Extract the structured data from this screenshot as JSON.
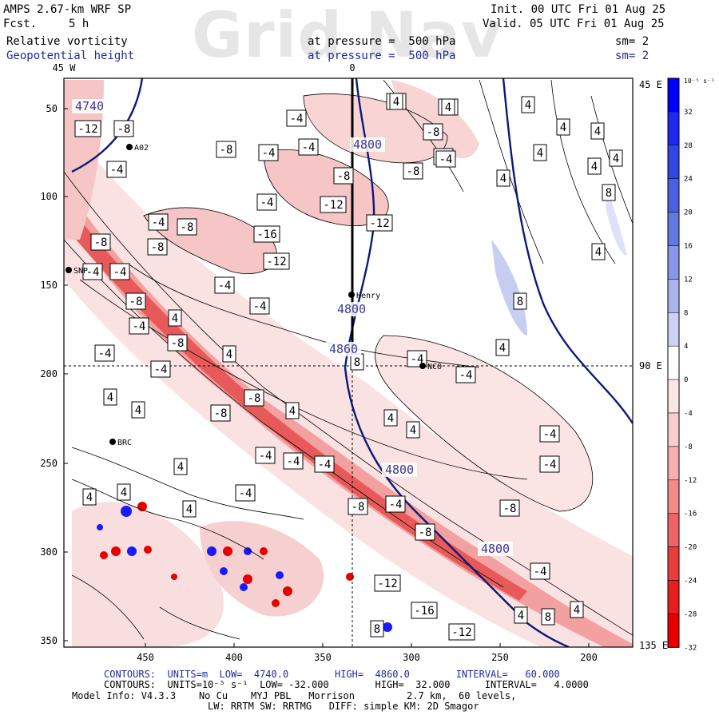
{
  "header": {
    "model": "AMPS 2.67-km WRF SP",
    "forecast_label": "Fcst.",
    "forecast_value": "5 h",
    "init": "Init. 00 UTC Fri 01 Aug 25",
    "valid": "Valid. 05 UTC Fri 01 Aug 25",
    "field1_name": "Relative vorticity",
    "field1_level": "at pressure =  500 hPa",
    "field1_sm": "sm= 2",
    "field2_name": "Geopotential height",
    "field2_level": "at pressure =  500 hPa",
    "field2_sm": "sm= 2",
    "watermark": "Grid Nav"
  },
  "map": {
    "top_labels": [
      "45 W",
      "0"
    ],
    "right_labels": [
      "45 E",
      "90 E",
      "135 E"
    ],
    "y_ticks": [
      "50",
      "100",
      "150",
      "200",
      "250",
      "300",
      "350"
    ],
    "x_ticks": [
      "450",
      "400",
      "350",
      "300",
      "250",
      "200"
    ],
    "stations": [
      "A02",
      "SNP",
      "Henry",
      "NCO",
      "BRC"
    ],
    "height_labels": [
      "4740",
      "4800",
      "4800",
      "4860",
      "4800",
      "4800"
    ],
    "vort_labels": [
      "-4",
      "-4",
      "-4",
      "-8",
      "-4",
      "-4",
      "-8",
      "-12",
      "-8",
      "-4",
      "-8",
      "-12",
      "-12",
      "-8",
      "-4",
      "-8",
      "-4",
      "-16",
      "-8",
      "-4",
      "-8",
      "-12",
      "-4",
      "-4",
      "-8",
      "-4",
      "-8",
      "-4",
      "-8",
      "-4",
      "-4",
      "-8",
      "-8",
      "-4",
      "-4",
      "-4",
      "-8",
      "-4",
      "-8",
      "-12",
      "-16",
      "-12",
      "-4",
      "-4",
      "-4",
      "-4",
      "-4",
      "-4",
      "-8",
      "-4",
      "4",
      "4",
      "4",
      "4",
      "4",
      "4",
      "4",
      "4",
      "4",
      "4",
      "4",
      "4",
      "4",
      "4",
      "4",
      "4",
      "4",
      "4",
      "4",
      "4",
      "4",
      "4",
      "8",
      "8",
      "8",
      "8",
      "8",
      "4",
      "4"
    ],
    "colors": {
      "height_contour": "#0b1a7a",
      "frame": "#000000"
    }
  },
  "colorbar": {
    "unit": "10⁻⁵ s⁻¹",
    "labels": [
      "32",
      "28",
      "24",
      "20",
      "16",
      "12",
      "8",
      "4",
      "0",
      "-4",
      "-8",
      "-12",
      "-16",
      "-20",
      "-24",
      "-28",
      "-32"
    ],
    "colors": [
      "#0000ff",
      "#1e28f0",
      "#3246e6",
      "#4b5fe1",
      "#6478e1",
      "#8796e6",
      "#aab4ee",
      "#cdd2f5",
      "#ffffff",
      "#fbe6e6",
      "#f8cdcd",
      "#f5afaf",
      "#f28c8c",
      "#ee6464",
      "#eb3c3c",
      "#e81e1e",
      "#e60000"
    ]
  },
  "footer": {
    "line1_units": "CONTOURS:  UNITS=m  LOW=  4740.0        HIGH=  4860.0        INTERVAL=   60.000",
    "line2_units": "CONTOURS:  UNITS=10⁻⁵ s⁻¹  LOW= -32.000        HIGH=  32.000      INTERVAL=   4.0000",
    "line3_model": "Model Info: V4.3.3    No Cu    MYJ PBL   Morrison         2.7 km,  60 levels,",
    "line4_model": "LW: RRTM SW: RRTMG   DIFF: simple KM: 2D Smagor"
  }
}
